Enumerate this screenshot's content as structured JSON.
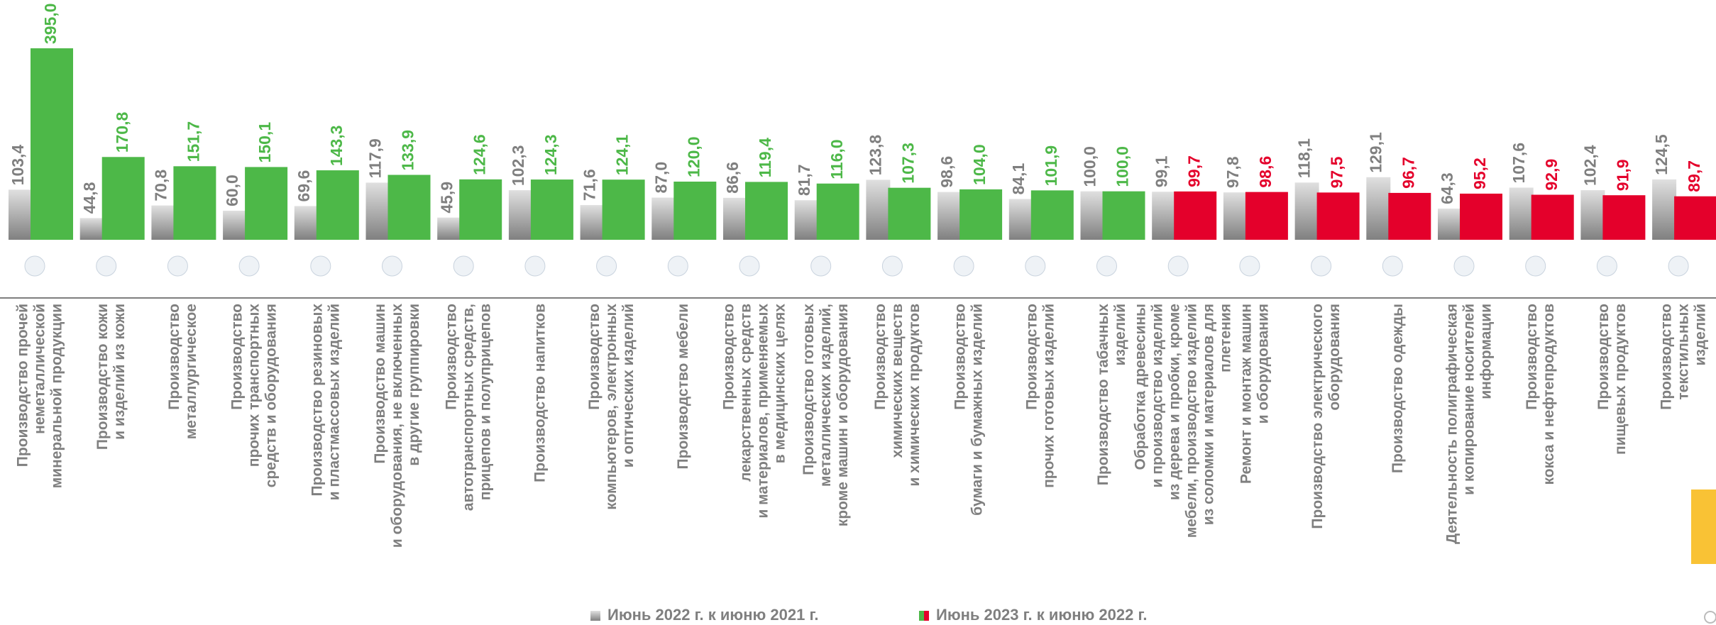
{
  "chart_data": {
    "type": "bar",
    "categories": [
      [
        "Производство прочей",
        "неметаллической",
        "минеральной продукции"
      ],
      [
        "Производство кожи",
        "и изделий из кожи"
      ],
      [
        "Производство",
        "металлургическое"
      ],
      [
        "Производство",
        "прочих транспортных",
        "средств и оборудования"
      ],
      [
        "Производство резиновых",
        "и пластмассовых изделий"
      ],
      [
        "Производство машин",
        "и оборудования, не включенных",
        "в другие группировки"
      ],
      [
        "Производство",
        "автотранспортных средств,",
        "прицепов и полуприцепов"
      ],
      [
        "Производство напитков"
      ],
      [
        "Производство",
        "компьютеров, электронных",
        "и оптических изделий"
      ],
      [
        "Производство мебели"
      ],
      [
        "Производство",
        "лекарственных средств",
        "и материалов, применяемых",
        "в медицинских целях"
      ],
      [
        "Производство готовых",
        "металлических изделий,",
        "кроме машин и оборудования"
      ],
      [
        "Производство",
        "химических веществ",
        "и химических продуктов"
      ],
      [
        "Производство",
        "бумаги и бумажных изделий"
      ],
      [
        "Производство",
        "прочих готовых изделий"
      ],
      [
        "Производство табачных",
        "изделий"
      ],
      [
        "Обработка древесины",
        "и производство изделий",
        "из дерева и пробки, кроме",
        "мебели, производство изделий",
        "из соломки и материалов для",
        "плетения"
      ],
      [
        "Ремонт и монтаж машин",
        "и оборудования"
      ],
      [
        "Производство электрического",
        "оборудования"
      ],
      [
        "Производство одежды"
      ],
      [
        "Деятельность полиграфическая",
        "и копирование носителей",
        "информации"
      ],
      [
        "Производство",
        "кокса и нефтепродуктов"
      ],
      [
        "Производство",
        "пищевых продуктов"
      ],
      [
        "Производство",
        "текстильных",
        "изделий"
      ]
    ],
    "series": [
      {
        "name": "Июнь 2022 г. к июню 2021 г.",
        "color": "#a6a6a6",
        "values": [
          103.4,
          44.8,
          70.8,
          60.0,
          69.6,
          117.9,
          45.9,
          102.3,
          71.6,
          87.0,
          86.6,
          81.7,
          123.8,
          98.6,
          84.1,
          100.0,
          99.1,
          97.8,
          118.1,
          129.1,
          64.3,
          107.6,
          102.4,
          124.5
        ],
        "value_labels": [
          "103,4",
          "44,8",
          "70,8",
          "60,0",
          "69,6",
          "117,9",
          "45,9",
          "102,3",
          "71,6",
          "87,0",
          "86,6",
          "81,7",
          "123,8",
          "98,6",
          "84,1",
          "100,0",
          "99,1",
          "97,8",
          "118,1",
          "129,1",
          "64,3",
          "107,6",
          "102,4",
          "124,5"
        ]
      },
      {
        "name": "Июнь 2023 г. к июню 2022 г.",
        "color": "#4db848",
        "colors": [
          "#4db848",
          "#4db848",
          "#4db848",
          "#4db848",
          "#4db848",
          "#4db848",
          "#4db848",
          "#4db848",
          "#4db848",
          "#4db848",
          "#4db848",
          "#4db848",
          "#4db848",
          "#4db848",
          "#4db848",
          "#4db848",
          "#e4002b",
          "#e4002b",
          "#e4002b",
          "#e4002b",
          "#e4002b",
          "#e4002b",
          "#e4002b",
          "#e4002b"
        ],
        "values": [
          395.0,
          170.8,
          151.7,
          150.1,
          143.3,
          133.9,
          124.6,
          124.3,
          124.1,
          120.0,
          119.4,
          116.0,
          107.3,
          104.0,
          101.9,
          100.0,
          99.7,
          98.6,
          97.5,
          96.7,
          95.2,
          92.9,
          91.9,
          89.7
        ],
        "value_labels": [
          "395,0",
          "170,8",
          "151,7",
          "150,1",
          "143,3",
          "133,9",
          "124,6",
          "124,3",
          "124,1",
          "120,0",
          "119,4",
          "116,0",
          "107,3",
          "104,0",
          "101,9",
          "100,0",
          "99,7",
          "98,6",
          "97,5",
          "96,7",
          "95,2",
          "92,9",
          "91,9",
          "89,7"
        ]
      }
    ],
    "ylim": [
      0,
      480
    ]
  }
}
